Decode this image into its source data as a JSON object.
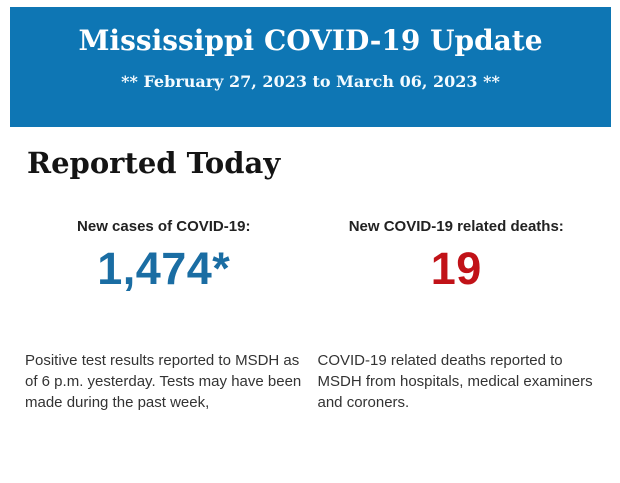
{
  "header": {
    "title": "Mississippi COVID-19 Update",
    "date_range": "** February 27, 2023 to March 06, 2023 **"
  },
  "section": {
    "heading": "Reported Today"
  },
  "stats": {
    "cases": {
      "label": "New cases of COVID-19:",
      "value": "1,474*",
      "description": "Positive test results reported to MSDH as of 6 p.m. yesterday. Tests may have been made during the past week,"
    },
    "deaths": {
      "label": "New COVID-19 related deaths:",
      "value": "19",
      "description": "COVID-19 related deaths reported to MSDH from hospitals, medical examiners and coroners."
    }
  },
  "colors": {
    "banner_background": "#0e76b4",
    "banner_text": "#ffffff",
    "cases_value": "#1a6da3",
    "deaths_value": "#c11218"
  }
}
